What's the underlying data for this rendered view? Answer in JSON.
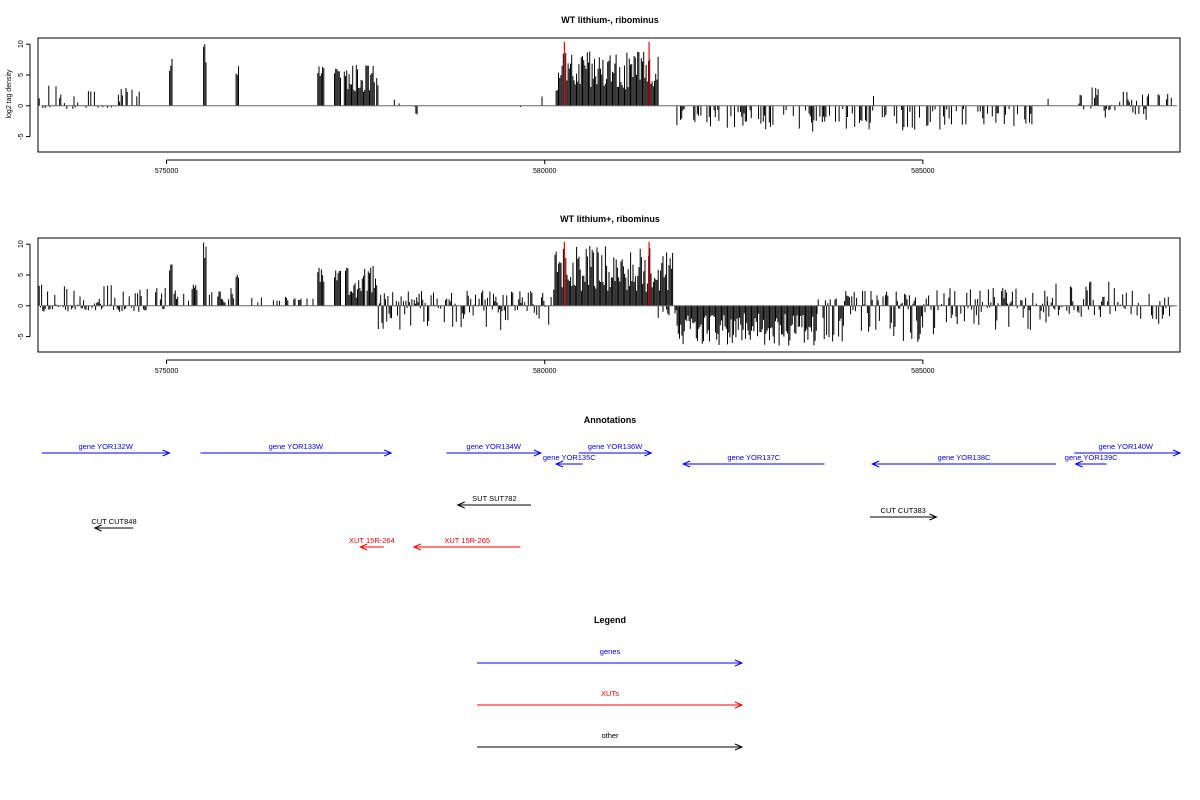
{
  "chart_data": [
    {
      "type": "bar",
      "title": "WT lithium-, ribominus",
      "ylabel": "log2 tag density",
      "xlabel": "",
      "xlim": [
        573300,
        588400
      ],
      "ylim": [
        -7.5,
        11
      ],
      "xticks": [
        575000,
        580000,
        585000
      ],
      "yticks": [
        -5,
        0,
        5,
        10
      ],
      "grid": false,
      "marker_color": "#ff0000",
      "markers_x": [
        580260,
        581380
      ],
      "series": [
        {
          "color": "#000000",
          "segments": [
            {
              "x": [
                573300,
                574400
              ],
              "y": [
                -0.5,
                3.5
              ],
              "density": 0.35
            },
            {
              "x": [
                574400,
                574650
              ],
              "y": [
                1,
                3
              ],
              "density": 0.3
            },
            {
              "x": [
                574650,
                574800
              ],
              "y": [
                -0.5,
                2.5
              ],
              "density": 0.2
            },
            {
              "x": [
                575040,
                575080
              ],
              "y": [
                4,
                8
              ],
              "density": 1
            },
            {
              "x": [
                575490,
                575530
              ],
              "y": [
                7,
                10
              ],
              "density": 1
            },
            {
              "x": [
                575920,
                575960
              ],
              "y": [
                5,
                6.5
              ],
              "density": 1
            },
            {
              "x": [
                577000,
                577080
              ],
              "y": [
                4.5,
                6.5
              ],
              "density": 1
            },
            {
              "x": [
                577220,
                577300
              ],
              "y": [
                4,
                6.5
              ],
              "density": 1
            },
            {
              "x": [
                577350,
                577800
              ],
              "y": [
                2,
                6.8
              ],
              "density": 0.9
            },
            {
              "x": [
                577900,
                578400
              ],
              "y": [
                -1.5,
                1.5
              ],
              "density": 0.06
            },
            {
              "x": [
                578400,
                578700
              ],
              "y": [
                -2.5,
                0.5
              ],
              "density": 0.05
            },
            {
              "x": [
                579600,
                579900
              ],
              "y": [
                -2.5,
                1
              ],
              "density": 0.05
            },
            {
              "x": [
                579900,
                580200
              ],
              "y": [
                1.5,
                3
              ],
              "density": 0.05
            },
            {
              "x": [
                580150,
                581500
              ],
              "y": [
                2,
                8.8
              ],
              "density": 1
            },
            {
              "x": [
                581700,
                583400
              ],
              "y": [
                -3.8,
                -0.5
              ],
              "density": 0.45
            },
            {
              "x": [
                583400,
                585300
              ],
              "y": [
                -4.2,
                -0.5
              ],
              "density": 0.4
            },
            {
              "x": [
                584300,
                584400
              ],
              "y": [
                0.5,
                2.5
              ],
              "density": 0.2
            },
            {
              "x": [
                585300,
                586450
              ],
              "y": [
                -3.5,
                -0.5
              ],
              "density": 0.3
            },
            {
              "x": [
                586450,
                586700
              ],
              "y": [
                1,
                4.5
              ],
              "density": 0.2
            },
            {
              "x": [
                587000,
                588000
              ],
              "y": [
                -2.5,
                3
              ],
              "density": 0.4
            },
            {
              "x": [
                588000,
                588300
              ],
              "y": [
                0.5,
                2
              ],
              "density": 0.15
            }
          ]
        }
      ]
    },
    {
      "type": "bar",
      "title": "WT lithium+, ribominus",
      "ylabel": "",
      "xlabel": "",
      "xlim": [
        573300,
        588400
      ],
      "ylim": [
        -7.5,
        11
      ],
      "xticks": [
        575000,
        580000,
        585000
      ],
      "yticks": [
        -5,
        0,
        5,
        10
      ],
      "grid": false,
      "marker_color": "#ff0000",
      "markers_x": [
        580260,
        581380
      ],
      "series": [
        {
          "color": "#000000",
          "segments": [
            {
              "x": [
                573300,
                575000
              ],
              "y": [
                -1,
                4
              ],
              "density": 0.7
            },
            {
              "x": [
                575040,
                575080
              ],
              "y": [
                4,
                7.5
              ],
              "density": 1
            },
            {
              "x": [
                575100,
                575450
              ],
              "y": [
                0.5,
                3.5
              ],
              "density": 0.5
            },
            {
              "x": [
                575490,
                575530
              ],
              "y": [
                7,
                10.3
              ],
              "density": 1
            },
            {
              "x": [
                575550,
                575900
              ],
              "y": [
                0.5,
                3
              ],
              "density": 0.4
            },
            {
              "x": [
                575920,
                575960
              ],
              "y": [
                4,
                6
              ],
              "density": 1
            },
            {
              "x": [
                576000,
                577000
              ],
              "y": [
                0.3,
                1.5
              ],
              "density": 0.2
            },
            {
              "x": [
                577000,
                577080
              ],
              "y": [
                3.5,
                6.5
              ],
              "density": 1
            },
            {
              "x": [
                577220,
                577300
              ],
              "y": [
                3,
                6.5
              ],
              "density": 1
            },
            {
              "x": [
                577350,
                577800
              ],
              "y": [
                1,
                6.5
              ],
              "density": 0.9
            },
            {
              "x": [
                577800,
                580100
              ],
              "y": [
                -4,
                2.5
              ],
              "density": 0.8
            },
            {
              "x": [
                580120,
                581700
              ],
              "y": [
                2,
                9.8
              ],
              "density": 1
            },
            {
              "x": [
                581500,
                581750
              ],
              "y": [
                -2,
                -0.5
              ],
              "density": 0.3
            },
            {
              "x": [
                581750,
                583600
              ],
              "y": [
                -6.5,
                -1
              ],
              "density": 1
            },
            {
              "x": [
                583600,
                585200
              ],
              "y": [
                -6,
                2.5
              ],
              "density": 0.85
            },
            {
              "x": [
                585200,
                586650
              ],
              "y": [
                -4.5,
                3
              ],
              "density": 0.8
            },
            {
              "x": [
                586650,
                587500
              ],
              "y": [
                -2,
                4
              ],
              "density": 0.6
            },
            {
              "x": [
                587500,
                588300
              ],
              "y": [
                -3,
                3
              ],
              "density": 0.6
            }
          ]
        }
      ]
    }
  ],
  "annotations": {
    "title": "Annotations",
    "features": [
      {
        "label": "gene YOR132W",
        "type": "gene",
        "start": 573350,
        "end": 575040,
        "strand": "+"
      },
      {
        "label": "gene YOR133W",
        "type": "gene",
        "start": 575450,
        "end": 577970,
        "strand": "+"
      },
      {
        "label": "gene YOR134W",
        "type": "gene",
        "start": 578700,
        "end": 579950,
        "strand": "+"
      },
      {
        "label": "gene YOR136W",
        "type": "gene",
        "start": 580450,
        "end": 581410,
        "strand": "+"
      },
      {
        "label": "gene YOR135C",
        "type": "gene",
        "start": 580150,
        "end": 580500,
        "strand": "-"
      },
      {
        "label": "gene YOR137C",
        "type": "gene",
        "start": 581830,
        "end": 583700,
        "strand": "-"
      },
      {
        "label": "gene YOR138C",
        "type": "gene",
        "start": 584330,
        "end": 586760,
        "strand": "-"
      },
      {
        "label": "gene YOR139C",
        "type": "gene",
        "start": 587020,
        "end": 587430,
        "strand": "-"
      },
      {
        "label": "gene YOR140W",
        "type": "gene",
        "start": 587000,
        "end": 588400,
        "strand": "+"
      },
      {
        "label": "SUT SUT782",
        "type": "other",
        "start": 578850,
        "end": 579820,
        "strand": "-"
      },
      {
        "label": "CUT CUT848",
        "type": "other",
        "start": 574050,
        "end": 574560,
        "strand": "-"
      },
      {
        "label": "CUT CUT383",
        "type": "other",
        "start": 584300,
        "end": 585180,
        "strand": "+"
      },
      {
        "label": "XUT 15R-264",
        "type": "xut",
        "start": 577560,
        "end": 577870,
        "strand": "-"
      },
      {
        "label": "XUT 15R-265",
        "type": "xut",
        "start": 578270,
        "end": 579680,
        "strand": "-"
      }
    ]
  },
  "legend": {
    "title": "Legend",
    "items": [
      {
        "label": "genes",
        "color": "#0000ff"
      },
      {
        "label": "XUTs",
        "color": "#ff0000"
      },
      {
        "label": "other",
        "color": "#000000"
      }
    ]
  },
  "colors": {
    "gene": "#0000ff",
    "xut": "#ff0000",
    "other": "#000000"
  }
}
